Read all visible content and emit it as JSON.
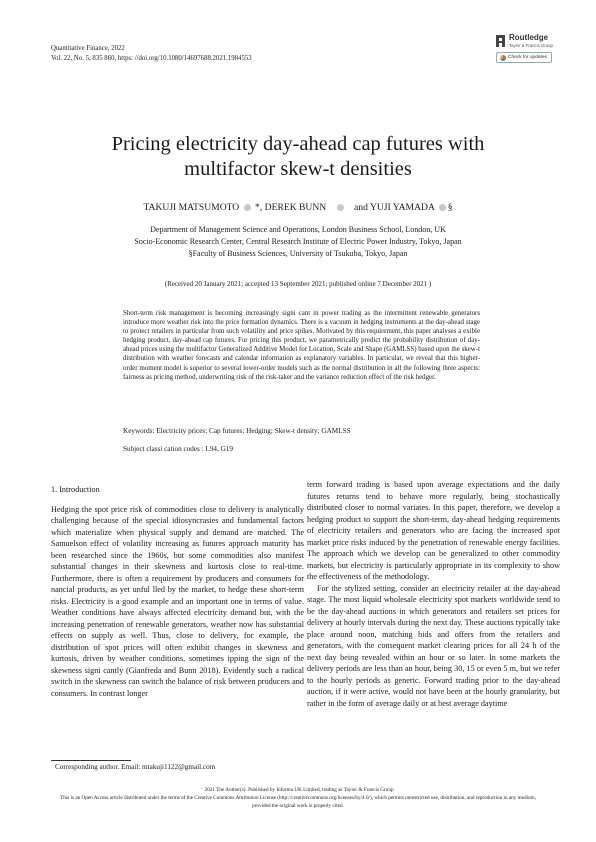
{
  "journal": {
    "name": "Quantitative Finance, 2022",
    "citation": "Vol. 22, No. 5, 835 860, https: //doi.org/10.1080/14697688.2021.1984553"
  },
  "publisher": {
    "name": "Routledge",
    "subtitle": "Taylor & Francis Group",
    "check_updates_label": "Check for updates"
  },
  "title": {
    "line1": "Pricing electricity day-ahead cap futures with",
    "line2": "multifactor skew-t densities"
  },
  "authors": {
    "author1": "TAKUJI MATSUMOTO",
    "author1_mark": " *,",
    "author2": "DEREK BUNN",
    "and": "and",
    "author3": "YUJI YAMADA",
    "author3_mark": "§"
  },
  "affiliations": [
    "Department of Management Science and Operations, London Business School, London, UK",
    "Socio-Economic Research Center, Central Research Institute of Electric Power Industry, Tokyo, Japan",
    "§Faculty of Business Sciences, University of Tsukuba, Tokyo, Japan"
  ],
  "received": "(Received 20 January 2021; accepted 13 September 2021; published online 7 December 2021 )",
  "abstract": "Short-term risk management is becoming increasingly signi cant in power trading as the intermittent renewable generators introduce more weather risk into the price formation dynamics. There is a vacuum in hedging instruments at the day-ahead stage to protect retailers in particular from such volatility and price spikes. Motivated by this requirement, this paper analyses a exible hedging product, day-ahead cap futures. For pricing this product, we parametrically predict the probability distribution of day-ahead prices using the multifactor Generalized Additive Model for Location, Scale and Shape (GAMLSS) based upon the skew-t distribution with weather forecasts and calendar information as explanatory variables. In particular, we reveal that this higher-order moment model is superior to several lower-order models such as the normal distribution in all the following three aspects: fairness as pricing method, underwriting risk of the risk-taker and the variance reduction effect of the risk hedger.",
  "keywords": "Keywords: Electricity prices; Cap futures; Hedging; Skew-t density; GAMLSS",
  "class_codes": "Subject classi cation codes : L94, G19",
  "section_heading": "1. Introduction",
  "left_column": [
    "Hedging the spot price risk of commodities close to delivery is analytically challenging because of the special idiosyncrasies and fundamental factors which materialize when physical supply and demand are matched. The Samuelson effect of volatility increasing as futures approach maturity has been researched since the 1960s, but some commodities also manifest substantial changes in their skewness and kurtosis close to real-time. Furthermore, there is often a requirement by producers and consumers for nancial products, as yet unful lled by the market, to hedge these short-term risks. Electricity is a good example and an important one in terms of value. Weather conditions have always affected electricity demand but, with the increasing penetration of renewable generators, weather now has substantial effects on supply as well. Thus, close to delivery, for example, the distribution of spot prices will often exhibit changes in skewness and kurtosis, driven by weather conditions, sometimes ipping the sign of the skewness signi cantly (Gianfreda and Bunn 2018). Evidently such a radical switch in the skewness can switch the balance of risk between producers and consumers. In contrast longer"
  ],
  "right_column": [
    "term forward trading is based upon average expectations and the daily futures returns tend to behave more regularly, being stochastically distributed closer to normal variates. In this paper, therefore, we develop a hedging product to support the short-term, day-ahead hedging requirements of electricity retailers and generators who are facing the increased spot market price risks induced by the penetration of renewable energy facilities. The approach which we develop can be generalized to other commodity markets, but electricity is particularly appropriate in its complexity to show the effectiveness of the methodology.",
    "For the stylized setting, consider an electricity retailer at the day-ahead stage. The most liquid wholesale electricity spot markets worldwide tend to be the day-ahead auctions in which generators and retailers set prices for delivery at hourly intervals during the next day. These auctions typically take place around noon, matching bids and offers from the retailers and generators, with the consequent market clearing prices for all 24 h of the next day being revealed within an hour or so later. In some markets the delivery periods are less than an hour, being 30, 15 or even 5 m, but we refer to the hourly periods as generic. Forward trading prior to the day-ahead auction, if it were active, would not have been at the hourly granularity, but rather in the form of average daily or at best average daytime"
  ],
  "footnote": "Corresponding author. Email: mtakuji1122@gmail.com",
  "copyright": "' 2021 The Author(s). Published by Informa UK Limited, trading as Taylor & Francis Group",
  "license": "This is an Open Access article distributed under the terms of the Creative Commons Attribution License (http://creativecommons.org/licenses/by/4.0/), which permits unrestricted use, distribution, and reproduction in any medium, provided the original work is properly cited."
}
